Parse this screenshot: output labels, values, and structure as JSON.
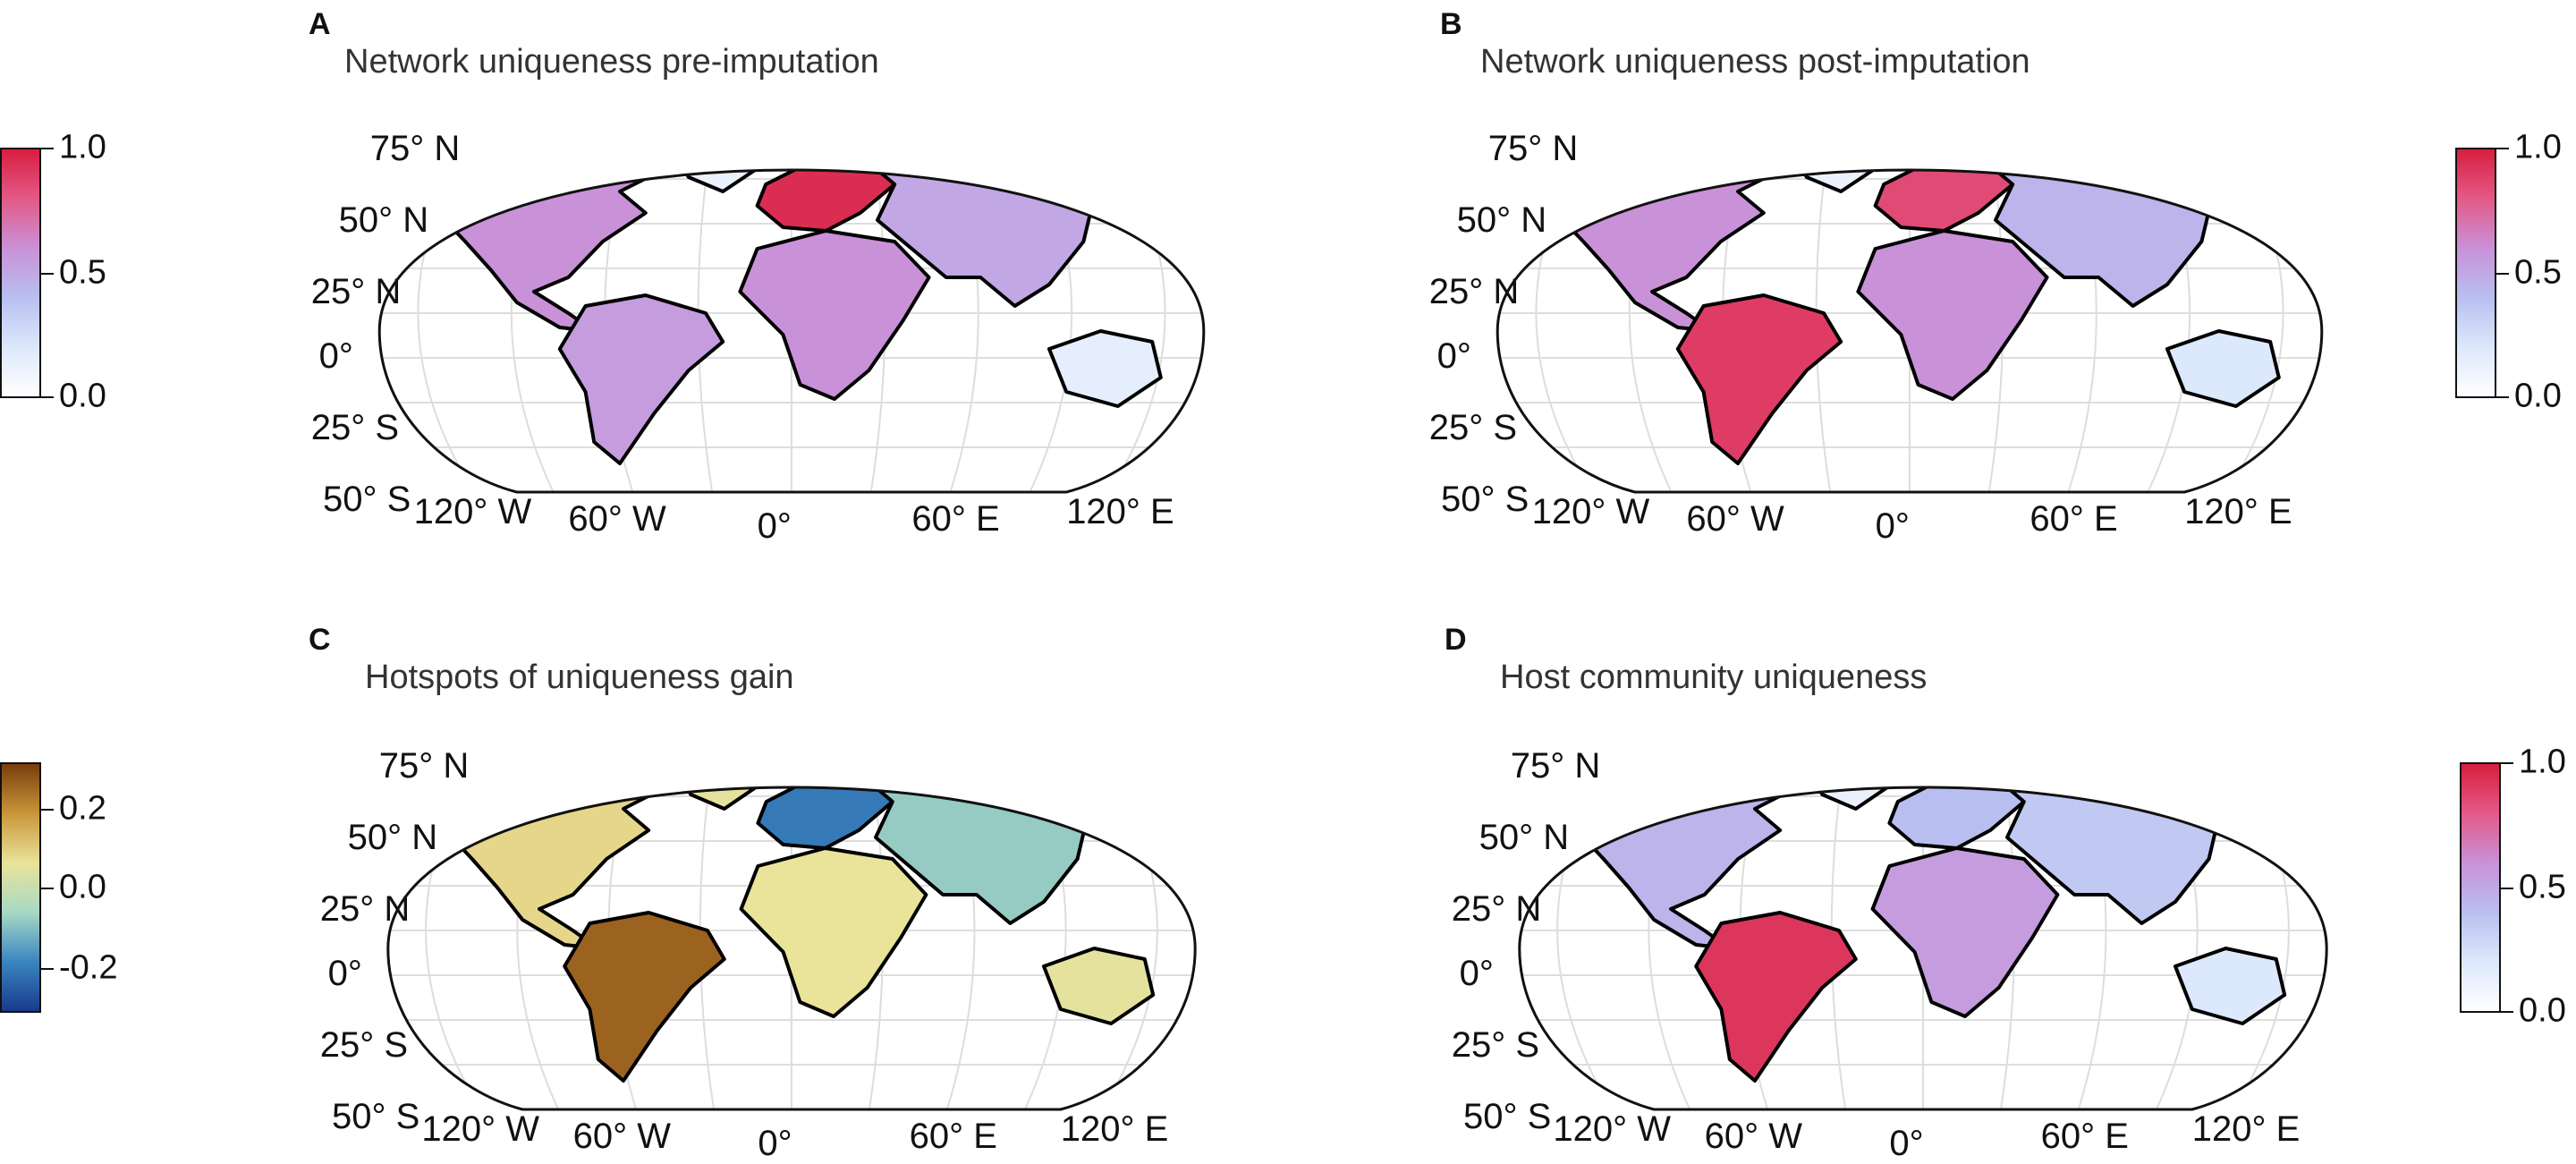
{
  "panels": [
    {
      "letter": "A",
      "title": "Network uniqueness pre-imputation",
      "palette": "seq",
      "colorbar": {
        "side": "left",
        "ticks": [
          "1.0",
          "0.5",
          "0.0"
        ]
      },
      "hotspots": {
        "north_america": 0.6,
        "south_america": 0.55,
        "europe": 0.95,
        "africa": 0.6,
        "asia": 0.5,
        "australia": 0.15
      }
    },
    {
      "letter": "B",
      "title": "Network uniqueness post-imputation",
      "palette": "seq",
      "colorbar": {
        "side": "right",
        "ticks": [
          "1.0",
          "0.5",
          "0.0"
        ]
      },
      "hotspots": {
        "north_america": 0.6,
        "south_america": 0.9,
        "europe": 0.85,
        "africa": 0.6,
        "asia": 0.45,
        "australia": 0.2
      }
    },
    {
      "letter": "C",
      "title": "Hotspots of uniqueness gain",
      "palette": "div",
      "colorbar": {
        "side": "left",
        "ticks": [
          "0.2",
          "0.0",
          "-0.2"
        ]
      },
      "hotspots": {
        "north_america": 0.08,
        "south_america": 0.25,
        "europe": -0.2,
        "africa": 0.06,
        "asia": -0.08,
        "australia": 0.05
      }
    },
    {
      "letter": "D",
      "title": "Host community uniqueness",
      "palette": "seq",
      "colorbar": {
        "side": "right",
        "ticks": [
          "1.0",
          "0.5",
          "0.0"
        ]
      },
      "hotspots": {
        "north_america": 0.45,
        "south_america": 0.92,
        "europe": 0.4,
        "africa": 0.55,
        "asia": 0.35,
        "australia": 0.2
      }
    }
  ],
  "lat_labels": [
    "75° N",
    "50° N",
    "25° N",
    "0°",
    "25° S",
    "50° S"
  ],
  "lon_labels": [
    "120° W",
    "60° W",
    "0°",
    "60° E",
    "120° E"
  ],
  "colors": {
    "seq": [
      "#ffffff",
      "#dce8fb",
      "#b8bff0",
      "#c991d8",
      "#e35a88",
      "#d81e3f"
    ],
    "div": [
      "#1a3a8c",
      "#3a86c0",
      "#a8d9c5",
      "#eae39a",
      "#c9953a",
      "#7a3d0d"
    ]
  }
}
